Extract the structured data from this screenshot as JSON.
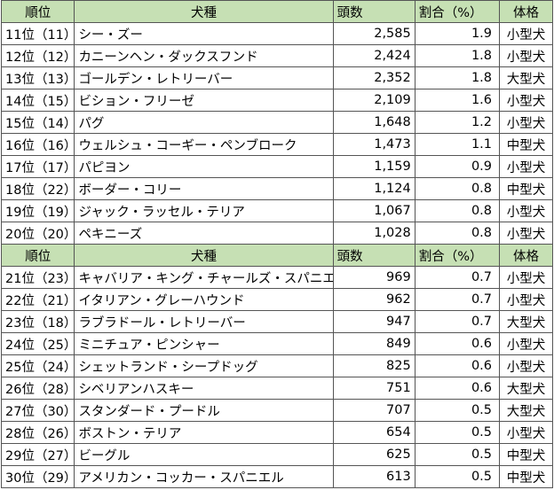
{
  "headers": {
    "rank": "順位",
    "breed": "犬種",
    "count": "頭数",
    "ratio": "割合（%）",
    "size": "体格"
  },
  "rows_a": [
    {
      "rank": "11位（11）",
      "breed": "シー・ズー",
      "count": "2,585",
      "ratio": "1.9",
      "size": "小型犬"
    },
    {
      "rank": "12位（12）",
      "breed": "カニーンヘン・ダックスフンド",
      "count": "2,424",
      "ratio": "1.8",
      "size": "小型犬"
    },
    {
      "rank": "13位（13）",
      "breed": "ゴールデン・レトリーバー",
      "count": "2,352",
      "ratio": "1.8",
      "size": "大型犬"
    },
    {
      "rank": "14位（15）",
      "breed": "ビション・フリーゼ",
      "count": "2,109",
      "ratio": "1.6",
      "size": "小型犬"
    },
    {
      "rank": "15位（14）",
      "breed": "パグ",
      "count": "1,648",
      "ratio": "1.2",
      "size": "小型犬"
    },
    {
      "rank": "16位（16）",
      "breed": "ウェルシュ・コーギー・ペンブローク",
      "count": "1,473",
      "ratio": "1.1",
      "size": "中型犬"
    },
    {
      "rank": "17位（17）",
      "breed": "パピヨン",
      "count": "1,159",
      "ratio": "0.9",
      "size": "小型犬"
    },
    {
      "rank": "18位（22）",
      "breed": "ボーダー・コリー",
      "count": "1,124",
      "ratio": "0.8",
      "size": "中型犬"
    },
    {
      "rank": "19位（19）",
      "breed": "ジャック・ラッセル・テリア",
      "count": "1,067",
      "ratio": "0.8",
      "size": "小型犬"
    },
    {
      "rank": "20位（20）",
      "breed": "ペキニーズ",
      "count": "1,028",
      "ratio": "0.8",
      "size": "小型犬"
    }
  ],
  "rows_b": [
    {
      "rank": "21位（23）",
      "breed": "キャバリア・キング・チャールズ・スパニエル",
      "count": "969",
      "ratio": "0.7",
      "size": "小型犬"
    },
    {
      "rank": "22位（21）",
      "breed": "イタリアン・グレーハウンド",
      "count": "962",
      "ratio": "0.7",
      "size": "小型犬"
    },
    {
      "rank": "23位（18）",
      "breed": "ラブラドール・レトリーバー",
      "count": "947",
      "ratio": "0.7",
      "size": "大型犬"
    },
    {
      "rank": "24位（25）",
      "breed": "ミニチュア・ピンシャー",
      "count": "849",
      "ratio": "0.6",
      "size": "小型犬"
    },
    {
      "rank": "25位（24）",
      "breed": "シェットランド・シープドッグ",
      "count": "825",
      "ratio": "0.6",
      "size": "小型犬"
    },
    {
      "rank": "26位（28）",
      "breed": "シベリアンハスキー",
      "count": "751",
      "ratio": "0.6",
      "size": "大型犬"
    },
    {
      "rank": "27位（30）",
      "breed": "スタンダード・プードル",
      "count": "707",
      "ratio": "0.5",
      "size": "大型犬"
    },
    {
      "rank": "28位（26）",
      "breed": "ボストン・テリア",
      "count": "654",
      "ratio": "0.5",
      "size": "小型犬"
    },
    {
      "rank": "29位（27）",
      "breed": "ビーグル",
      "count": "625",
      "ratio": "0.5",
      "size": "中型犬"
    },
    {
      "rank": "30位（29）",
      "breed": "アメリカン・コッカー・スパニエル",
      "count": "613",
      "ratio": "0.5",
      "size": "中型犬"
    }
  ],
  "colors": {
    "header_bg": "#c6e0b4",
    "border": "#555555"
  }
}
